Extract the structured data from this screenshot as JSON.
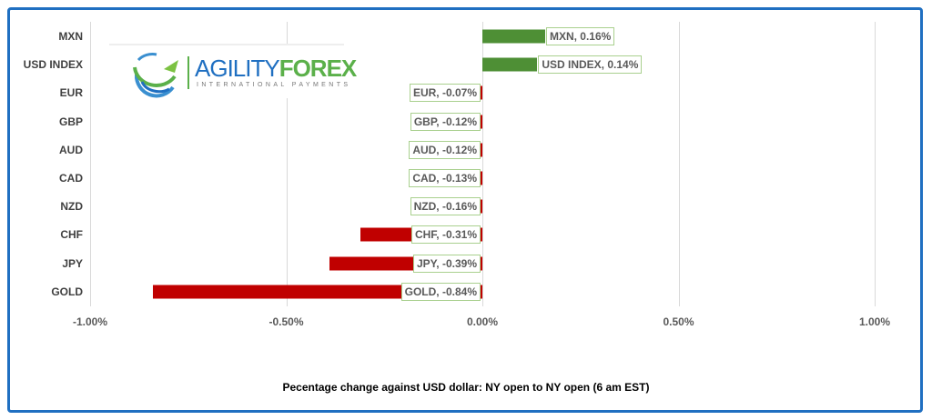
{
  "chart_data": {
    "type": "bar",
    "orientation": "horizontal",
    "categories": [
      "MXN",
      "USD INDEX",
      "EUR",
      "GBP",
      "AUD",
      "CAD",
      "NZD",
      "CHF",
      "JPY",
      "GOLD"
    ],
    "values": [
      0.16,
      0.14,
      -0.07,
      -0.12,
      -0.12,
      -0.13,
      -0.16,
      -0.31,
      -0.39,
      -0.84
    ],
    "data_labels": [
      "MXN, 0.16%",
      "USD INDEX, 0.14%",
      "EUR, -0.07%",
      "GBP, -0.12%",
      "AUD, -0.12%",
      "CAD, -0.13%",
      "NZD, -0.16%",
      "CHF, -0.31%",
      "JPY, -0.39%",
      "GOLD, -0.84%"
    ],
    "xlim": [
      -1.0,
      1.0
    ],
    "x_ticks": [
      -1.0,
      -0.5,
      0,
      0.5,
      1.0
    ],
    "x_tick_labels": [
      "-1.00%",
      "-0.50%",
      "0.00%",
      "0.50%",
      "1.00%"
    ],
    "xlabel": "Pecentage change against USD dollar:  NY open to NY open  (6 am EST)",
    "grid": true,
    "colors": {
      "positive": "#4e8f35",
      "negative": "#c00000",
      "frame": "#1f6fc1"
    }
  },
  "logo": {
    "brand_a": "AGILITY",
    "brand_b": "FOREX",
    "tagline": "INTERNATIONAL PAYMENTS"
  }
}
